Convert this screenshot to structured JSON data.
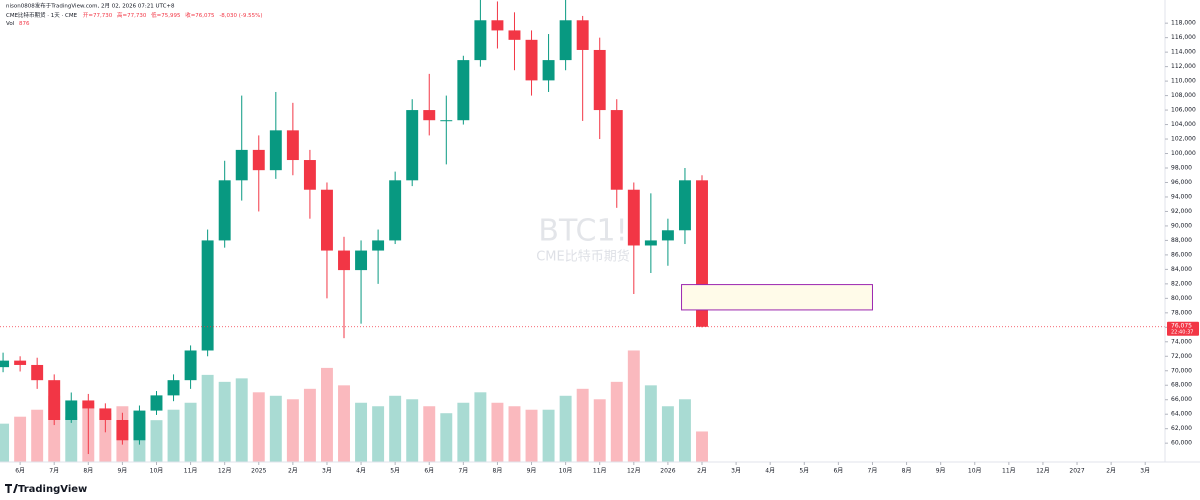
{
  "header": {
    "author": "nison0808发布于TradingView.com, 2月 02, 2026 07:21 UTC+8",
    "symbol": "CME比特币期货 · 1天 · CME",
    "ohlc": [
      "开=77,730",
      "高=77,730",
      "低=75,995",
      "收=76,075"
    ],
    "change": "-8,030 (-9.55%)",
    "volume_label": "Vol",
    "volume_value": "876"
  },
  "logo": "TradingView",
  "chart_data": {
    "type": "candlestick",
    "watermark": "BTC1!",
    "watermark_sub": "CME比特币期货",
    "x": [
      -0.5,
      0,
      0.5,
      1,
      1.5,
      2,
      2.5,
      3,
      3.5,
      4,
      4.5,
      5,
      5.5,
      6,
      6.5,
      7,
      7.5,
      8,
      8.5,
      9,
      9.5,
      10,
      10.5,
      11,
      11.5,
      12,
      12.5,
      13,
      13.5,
      14,
      14.5,
      15,
      15.5,
      16,
      16.5,
      17,
      17.5,
      18,
      18.5,
      19,
      19.5,
      20
    ],
    "open": [
      70500,
      71400,
      70800,
      68700,
      63200,
      65900,
      64800,
      63200,
      60400,
      64500,
      66600,
      68700,
      72800,
      88000,
      96300,
      100500,
      97700,
      103200,
      99100,
      95000,
      86600,
      83900,
      86600,
      88000,
      96300,
      106000,
      104600,
      104600,
      112900,
      118400,
      117000,
      115700,
      110100,
      112900,
      118400,
      114300,
      106000,
      95000,
      87300,
      88000,
      89400,
      96300
    ],
    "high": [
      72500,
      72000,
      71800,
      69500,
      67000,
      66800,
      65500,
      64200,
      65200,
      67200,
      69500,
      73500,
      89500,
      99000,
      108000,
      102500,
      108500,
      107000,
      100500,
      96000,
      88500,
      88000,
      89500,
      97500,
      107500,
      111000,
      108000,
      113500,
      123000,
      121000,
      119500,
      117000,
      116500,
      126000,
      119000,
      116000,
      107500,
      96000,
      94500,
      91000,
      98000,
      97000
    ],
    "low": [
      69800,
      69900,
      67500,
      62500,
      62800,
      58500,
      61500,
      59800,
      59800,
      63900,
      65800,
      67500,
      72000,
      87000,
      93500,
      92000,
      96500,
      97000,
      91000,
      80000,
      74500,
      76500,
      82000,
      87500,
      95500,
      102500,
      98500,
      104000,
      112000,
      114500,
      111500,
      108000,
      108500,
      111500,
      104500,
      102000,
      92500,
      80600,
      83500,
      84500,
      87500,
      75995
    ],
    "close": [
      71400,
      70800,
      68700,
      63200,
      65900,
      64800,
      63200,
      60400,
      64500,
      66600,
      68700,
      72800,
      88000,
      96300,
      100500,
      97700,
      103200,
      99100,
      95000,
      86600,
      83900,
      86600,
      88000,
      96300,
      106000,
      104600,
      104600,
      112900,
      118400,
      117000,
      115700,
      110100,
      112900,
      118400,
      114300,
      106000,
      95000,
      87300,
      88000,
      89400,
      96300,
      76075
    ],
    "volume": [
      1100,
      1300,
      1500,
      1900,
      1300,
      1700,
      1400,
      1600,
      1300,
      1200,
      1500,
      1700,
      2500,
      2300,
      2400,
      2000,
      1900,
      1800,
      2100,
      2700,
      2200,
      1700,
      1600,
      1900,
      1800,
      1600,
      1400,
      1700,
      2000,
      1700,
      1600,
      1500,
      1500,
      1900,
      2100,
      1800,
      2300,
      3200,
      2200,
      1600,
      1800,
      876
    ],
    "up_color": "#089981",
    "down_color": "#f23645",
    "xlim": [
      -0.59,
      33.58
    ],
    "xticks": [
      {
        "value": 0,
        "label": "6月"
      },
      {
        "value": 1,
        "label": "7月"
      },
      {
        "value": 2,
        "label": "8月"
      },
      {
        "value": 3,
        "label": "9月"
      },
      {
        "value": 4,
        "label": "10月"
      },
      {
        "value": 5,
        "label": "11月"
      },
      {
        "value": 6,
        "label": "12月"
      },
      {
        "value": 7,
        "label": "2025"
      },
      {
        "value": 8,
        "label": "2月"
      },
      {
        "value": 9,
        "label": "3月"
      },
      {
        "value": 10,
        "label": "4月"
      },
      {
        "value": 11,
        "label": "5月"
      },
      {
        "value": 12,
        "label": "6月"
      },
      {
        "value": 13,
        "label": "7月"
      },
      {
        "value": 14,
        "label": "8月"
      },
      {
        "value": 15,
        "label": "9月"
      },
      {
        "value": 16,
        "label": "10月"
      },
      {
        "value": 17,
        "label": "11月"
      },
      {
        "value": 18,
        "label": "12月"
      },
      {
        "value": 19,
        "label": "2026"
      },
      {
        "value": 20,
        "label": "2月"
      },
      {
        "value": 21,
        "label": "3月"
      },
      {
        "value": 22,
        "label": "4月"
      },
      {
        "value": 23,
        "label": "5月"
      },
      {
        "value": 24,
        "label": "6月"
      },
      {
        "value": 25,
        "label": "7月"
      },
      {
        "value": 26,
        "label": "8月"
      },
      {
        "value": 27,
        "label": "9月"
      },
      {
        "value": 28,
        "label": "10月"
      },
      {
        "value": 29,
        "label": "11月"
      },
      {
        "value": 30,
        "label": "12月"
      },
      {
        "value": 31,
        "label": "2027"
      },
      {
        "value": 32,
        "label": "2月"
      },
      {
        "value": 33,
        "label": "3月"
      }
    ],
    "ylim": [
      57400,
      121200
    ],
    "yticks": [
      {
        "value": 60000,
        "label": "60,000"
      },
      {
        "value": 62000,
        "label": "62,000"
      },
      {
        "value": 64000,
        "label": "64,000"
      },
      {
        "value": 66000,
        "label": "66,000"
      },
      {
        "value": 68000,
        "label": "68,000"
      },
      {
        "value": 70000,
        "label": "70,000"
      },
      {
        "value": 72000,
        "label": "72,000"
      },
      {
        "value": 74000,
        "label": "74,000"
      },
      {
        "value": 76000,
        "label": "76,000"
      },
      {
        "value": 78000,
        "label": "78,000"
      },
      {
        "value": 80000,
        "label": "80,000"
      },
      {
        "value": 82000,
        "label": "82,000"
      },
      {
        "value": 84000,
        "label": "84,000"
      },
      {
        "value": 86000,
        "label": "86,000"
      },
      {
        "value": 88000,
        "label": "88,000"
      },
      {
        "value": 90000,
        "label": "90,000"
      },
      {
        "value": 92000,
        "label": "92,000"
      },
      {
        "value": 94000,
        "label": "94,000"
      },
      {
        "value": 96000,
        "label": "96,000"
      },
      {
        "value": 98000,
        "label": "98,000"
      },
      {
        "value": 100000,
        "label": "100,000"
      },
      {
        "value": 102000,
        "label": "102,000"
      },
      {
        "value": 104000,
        "label": "104,000"
      },
      {
        "value": 106000,
        "label": "106,000"
      },
      {
        "value": 108000,
        "label": "108,000"
      },
      {
        "value": 110000,
        "label": "110,000"
      },
      {
        "value": 112000,
        "label": "112,000"
      },
      {
        "value": 114000,
        "label": "114,000"
      },
      {
        "value": 116000,
        "label": "116,000"
      },
      {
        "value": 118000,
        "label": "118,000"
      }
    ],
    "y2lim": [
      0,
      3300
    ],
    "grid": false,
    "price_tag": {
      "value": 76075,
      "label": "76,075",
      "countdown": "22:40:37"
    },
    "box": {
      "x": [
        19.4,
        25.0
      ],
      "y": [
        78400,
        81900
      ],
      "color": "#9c27b0"
    }
  }
}
